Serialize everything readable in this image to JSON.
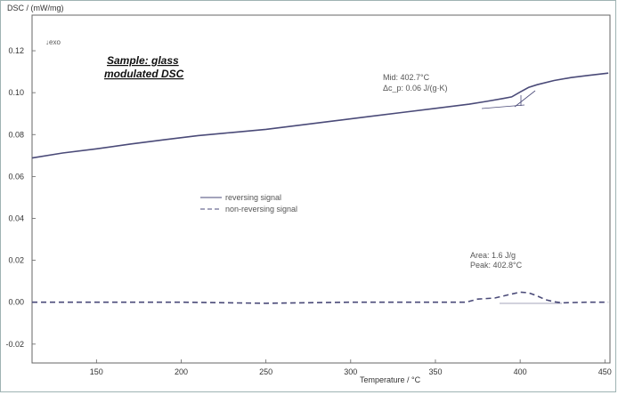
{
  "chart_data": {
    "type": "line",
    "ylabel": "DSC / (mW/mg)",
    "xlabel": "Temperature / °C",
    "exo_marker": "↓exo",
    "sample_label": [
      "Sample: glass",
      "modulated DSC"
    ],
    "xlim": [
      112,
      453
    ],
    "ylim": [
      -0.029,
      0.137
    ],
    "x_ticks": [
      150,
      200,
      250,
      300,
      350,
      400,
      450
    ],
    "x_tick_labels": [
      "150",
      "200",
      "250",
      "300",
      "350",
      "400",
      "450"
    ],
    "y_ticks": [
      0.12,
      0.1,
      0.08,
      0.06,
      0.04,
      0.02,
      0.0,
      -0.02
    ],
    "y_tick_labels": [
      "0.12",
      "0.10",
      "0.08",
      "0.06",
      "0.04",
      "0.02",
      "0.00",
      "-0.02"
    ],
    "legend": [
      {
        "name": "reversing signal",
        "style": "solid"
      },
      {
        "name": "non-reversing signal",
        "style": "dashed"
      }
    ],
    "annotations": {
      "glass_transition": [
        "Mid: 402.7°C",
        "Δc_p: 0.06 J/(g·K)"
      ],
      "peak": [
        "Area: 1.6 J/g",
        "Peak: 402.8°C"
      ]
    },
    "series": [
      {
        "name": "reversing signal",
        "style": "solid",
        "color": "#4a4a78",
        "x": [
          112,
          130,
          150,
          170,
          190,
          210,
          230,
          250,
          270,
          290,
          310,
          330,
          350,
          370,
          380,
          390,
          395,
          400,
          405,
          410,
          420,
          430,
          440,
          452
        ],
        "y": [
          0.0688,
          0.0712,
          0.0732,
          0.0755,
          0.0775,
          0.0795,
          0.081,
          0.0825,
          0.0845,
          0.0865,
          0.0885,
          0.0905,
          0.0925,
          0.0945,
          0.0958,
          0.0972,
          0.098,
          0.1003,
          0.1025,
          0.1038,
          0.1058,
          0.1072,
          0.1082,
          0.1093
        ]
      },
      {
        "name": "non-reversing signal",
        "style": "dashed",
        "color": "#4a4a78",
        "x": [
          112,
          150,
          200,
          250,
          300,
          350,
          368,
          375,
          385,
          393,
          400,
          405,
          410,
          415,
          420,
          425,
          440,
          452
        ],
        "y": [
          0.0,
          0.0,
          0.0,
          -0.0005,
          0.0,
          0.0,
          0.0,
          0.0015,
          0.002,
          0.0035,
          0.0048,
          0.0045,
          0.003,
          0.0012,
          0.0002,
          -0.0003,
          0.0,
          0.0
        ]
      }
    ]
  }
}
